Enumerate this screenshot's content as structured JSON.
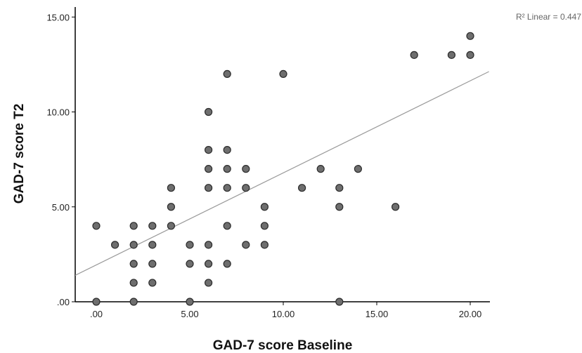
{
  "chart_data": {
    "type": "scatter",
    "xlabel": "GAD-7 score Baseline",
    "ylabel": "GAD-7 score T2",
    "xlim": [
      -1.2,
      21.0
    ],
    "ylim": [
      0,
      15.3
    ],
    "x_ticks": [
      0,
      5,
      10,
      15,
      20
    ],
    "x_tick_labels": [
      ".00",
      "5.00",
      "10.00",
      "15.00",
      "20.00"
    ],
    "y_ticks": [
      0,
      5,
      10,
      15
    ],
    "y_tick_labels": [
      ".00",
      "5.00",
      "10.00",
      "15.00"
    ],
    "grid": false,
    "fit_line": {
      "label": "R² Linear = 0.447",
      "intercept": 1.94,
      "slope": 0.485
    },
    "points": [
      [
        0,
        4
      ],
      [
        0,
        0
      ],
      [
        1,
        3
      ],
      [
        2,
        4
      ],
      [
        2,
        3
      ],
      [
        2,
        2
      ],
      [
        2,
        1
      ],
      [
        2,
        0
      ],
      [
        3,
        4
      ],
      [
        3,
        3
      ],
      [
        3,
        2
      ],
      [
        3,
        1
      ],
      [
        4,
        6
      ],
      [
        4,
        5
      ],
      [
        4,
        4
      ],
      [
        5,
        3
      ],
      [
        5,
        2
      ],
      [
        5,
        0
      ],
      [
        6,
        10
      ],
      [
        6,
        8
      ],
      [
        6,
        7
      ],
      [
        6,
        6
      ],
      [
        6,
        3
      ],
      [
        6,
        2
      ],
      [
        6,
        1
      ],
      [
        7,
        12
      ],
      [
        7,
        8
      ],
      [
        7,
        7
      ],
      [
        7,
        6
      ],
      [
        7,
        4
      ],
      [
        7,
        2
      ],
      [
        8,
        7
      ],
      [
        8,
        6
      ],
      [
        8,
        3
      ],
      [
        9,
        5
      ],
      [
        9,
        4
      ],
      [
        9,
        3
      ],
      [
        10,
        12
      ],
      [
        11,
        6
      ],
      [
        12,
        7
      ],
      [
        13,
        6
      ],
      [
        13,
        5
      ],
      [
        13,
        0
      ],
      [
        14,
        7
      ],
      [
        16,
        5
      ],
      [
        17,
        13
      ],
      [
        19,
        13
      ],
      [
        20,
        14
      ],
      [
        20,
        13
      ]
    ],
    "colors": {
      "point_fill": "#6e6e6e",
      "point_stroke": "#2b2b2b",
      "fit_line": "#9a9a9a",
      "axis": "#000000"
    }
  }
}
